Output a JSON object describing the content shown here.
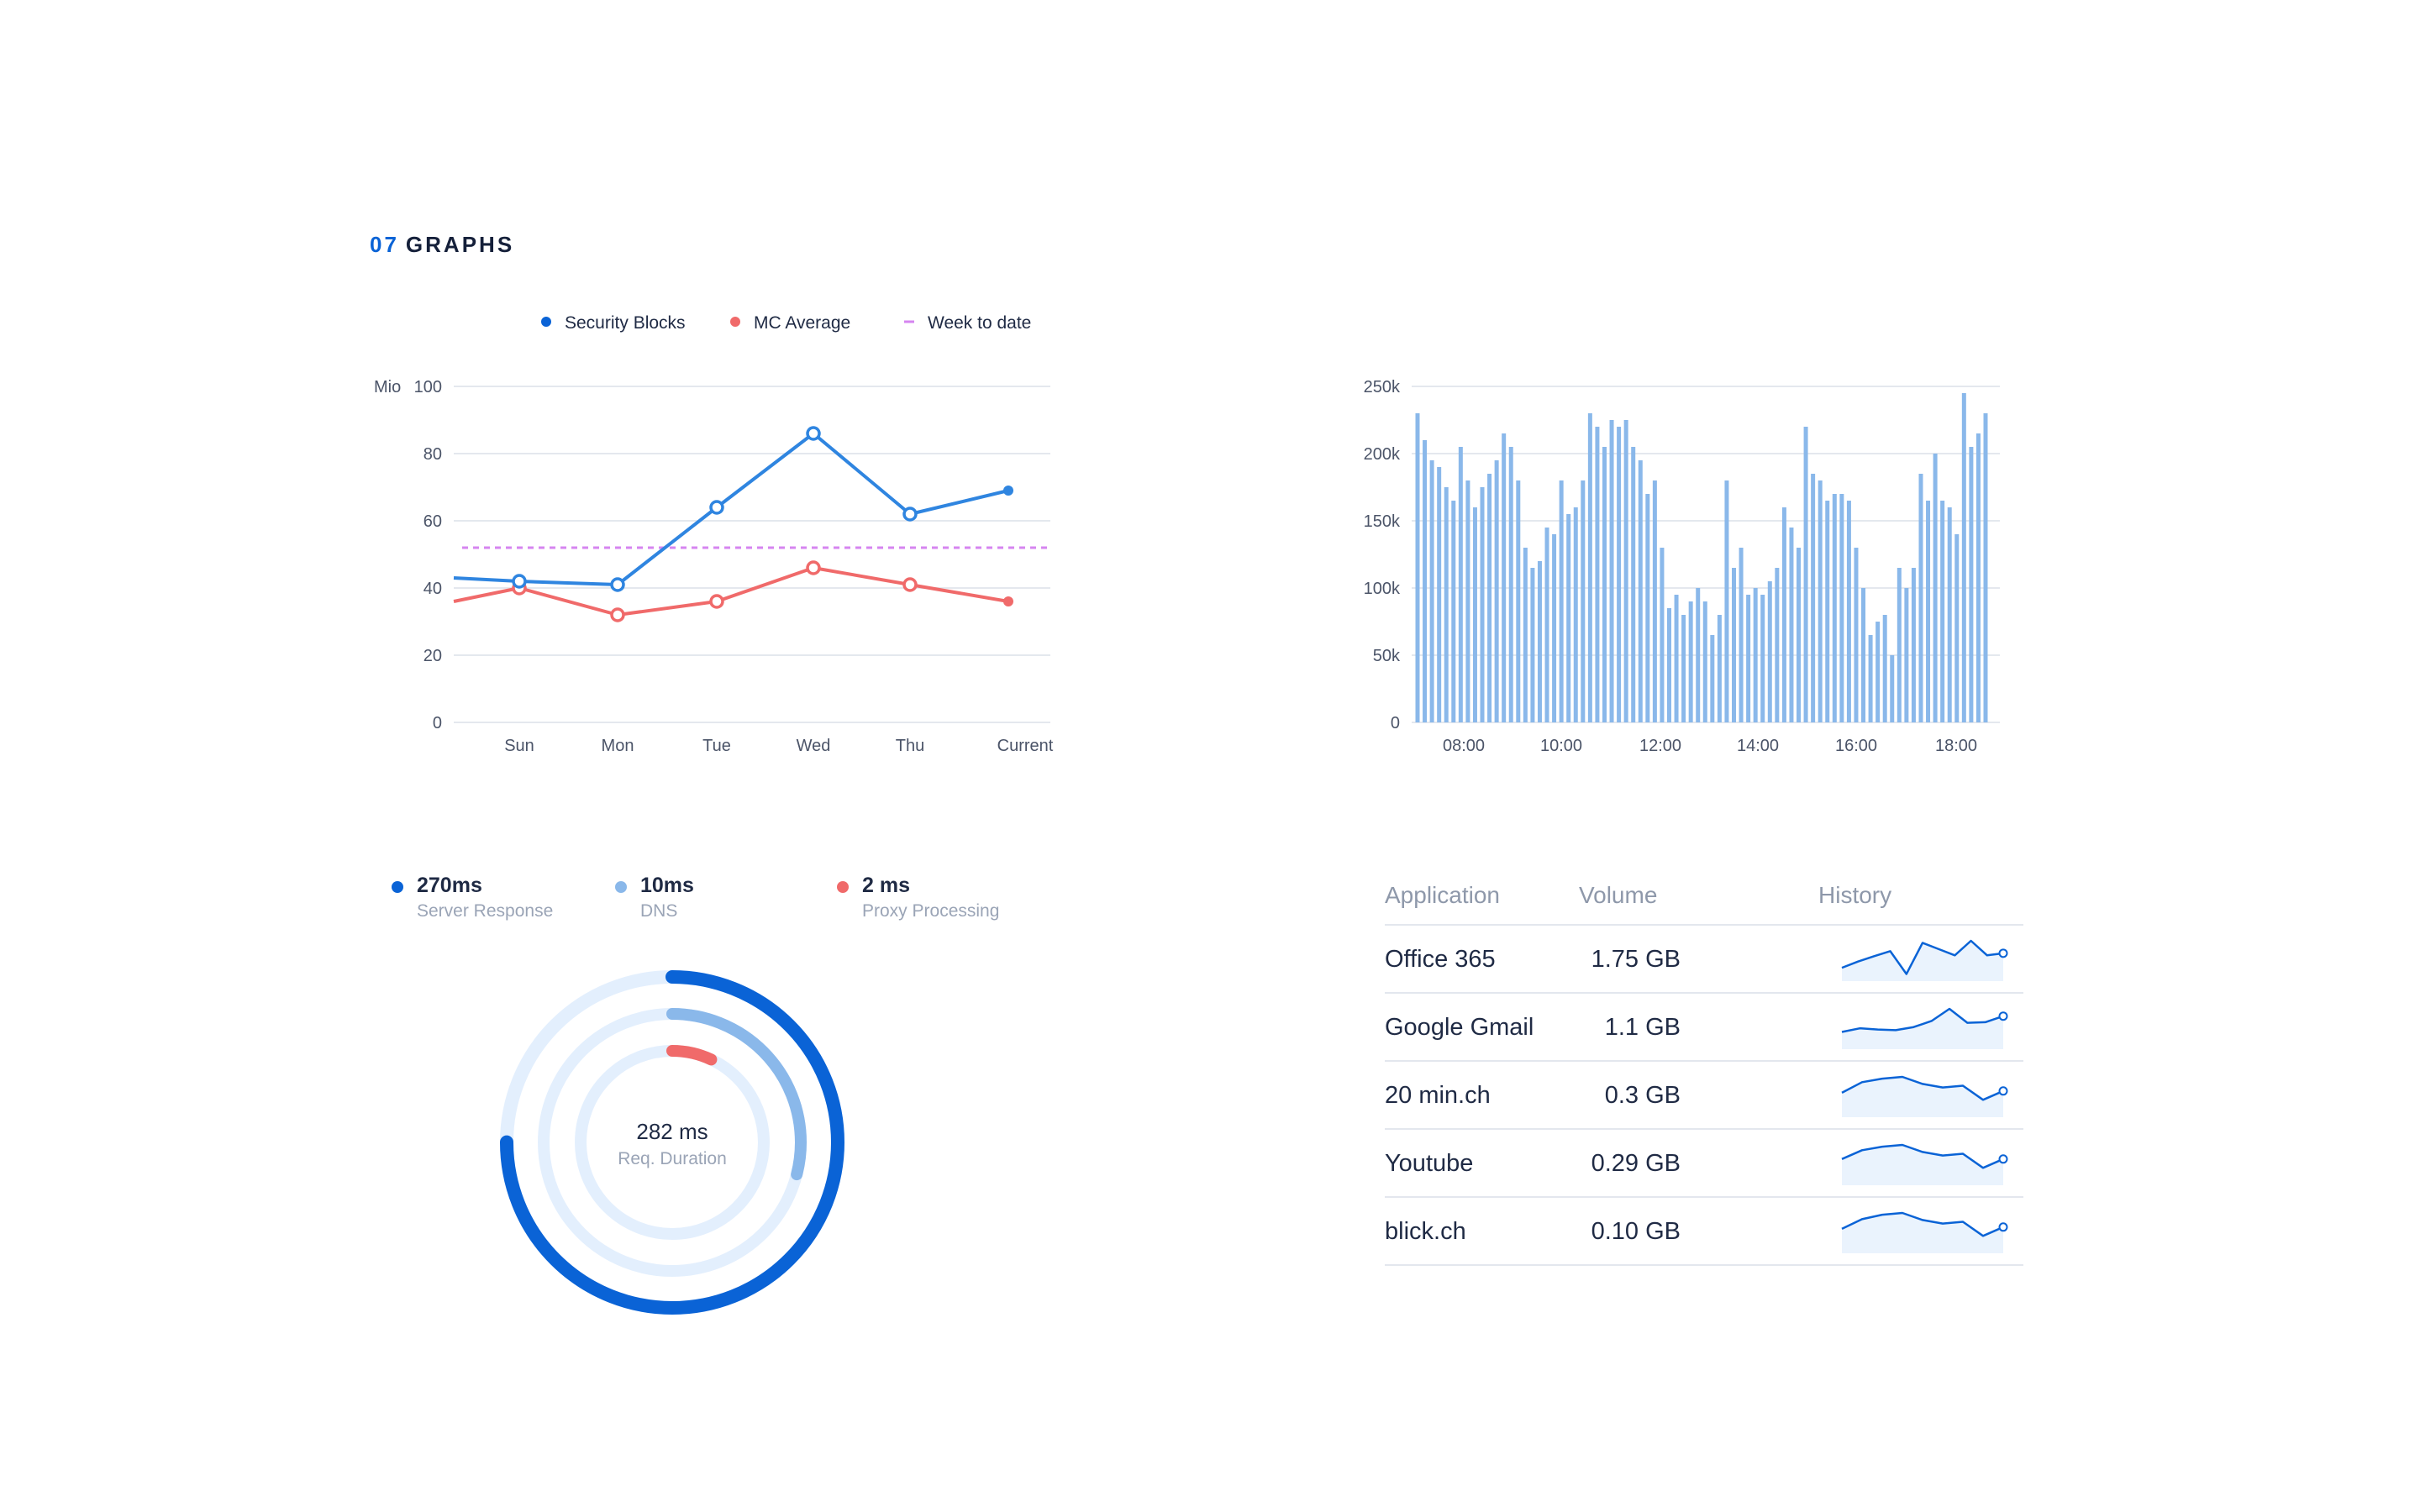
{
  "header": {
    "number": "07",
    "title": "GRAPHS"
  },
  "colors": {
    "blue": "#0a63d6",
    "line_blue": "#2f85e0",
    "red": "#f06a6a",
    "purple": "#d685f0",
    "bar": "#8ab8ea",
    "ring_track": "#e3effd"
  },
  "chart_data": [
    {
      "type": "line",
      "legend": [
        "Security Blocks",
        "MC Average",
        "Week to date"
      ],
      "legend_position": "top",
      "ylabel": "Mio",
      "yticks": [
        "100",
        "80",
        "60",
        "40",
        "20",
        "0"
      ],
      "ylim": [
        0,
        100
      ],
      "categories": [
        "Sun",
        "Mon",
        "Tue",
        "Wed",
        "Thu",
        "Current"
      ],
      "series": [
        {
          "name": "Security Blocks",
          "values": [
            42,
            41,
            64,
            86,
            62,
            69
          ],
          "start": 43
        },
        {
          "name": "MC Average",
          "values": [
            40,
            32,
            36,
            46,
            41,
            36
          ],
          "start": 36
        },
        {
          "name": "Week to date",
          "constant": 52
        }
      ],
      "grid": true
    },
    {
      "type": "bar",
      "yticks": [
        "250k",
        "200k",
        "150k",
        "100k",
        "50k",
        "0"
      ],
      "ylim": [
        0,
        250000
      ],
      "xticks": [
        "08:00",
        "10:00",
        "12:00",
        "14:00",
        "16:00",
        "18:00"
      ],
      "values": [
        230000,
        210000,
        195000,
        190000,
        175000,
        165000,
        205000,
        180000,
        160000,
        175000,
        185000,
        195000,
        215000,
        205000,
        180000,
        130000,
        115000,
        120000,
        145000,
        140000,
        180000,
        155000,
        160000,
        180000,
        230000,
        220000,
        205000,
        225000,
        220000,
        225000,
        205000,
        195000,
        170000,
        180000,
        130000,
        85000,
        95000,
        80000,
        90000,
        100000,
        90000,
        65000,
        80000,
        180000,
        115000,
        130000,
        95000,
        100000,
        95000,
        105000,
        115000,
        160000,
        145000,
        130000,
        220000,
        185000,
        180000,
        165000,
        170000,
        170000,
        165000,
        130000,
        100000,
        65000,
        75000,
        80000,
        50000,
        115000,
        100000,
        115000,
        185000,
        165000,
        200000,
        165000,
        160000,
        140000,
        245000,
        205000,
        215000,
        230000
      ],
      "grid": true
    },
    {
      "type": "pie",
      "variant": "radial-rings",
      "center_value": "282 ms",
      "center_label": "Req. Duration",
      "rings": [
        {
          "name": "Server Response",
          "value_text": "270ms",
          "fraction": 0.75
        },
        {
          "name": "DNS",
          "value_text": "10ms",
          "fraction": 0.29
        },
        {
          "name": "Proxy Processing",
          "value_text": "2 ms",
          "fraction": 0.07
        }
      ]
    },
    {
      "type": "table",
      "columns": [
        "Application",
        "Volume",
        "History"
      ],
      "rows": [
        {
          "application": "Office 365",
          "volume": "1.75 GB",
          "history": [
            20,
            35,
            48,
            60,
            5,
            80,
            65,
            50,
            85,
            50,
            55
          ]
        },
        {
          "application": "Google Gmail",
          "volume": "1.1 GB",
          "history": [
            20,
            26,
            24,
            23,
            28,
            38,
            58,
            35,
            36,
            46
          ]
        },
        {
          "application": "20 min.ch",
          "volume": "0.3 GB",
          "history": [
            22,
            34,
            38,
            40,
            32,
            28,
            30,
            14,
            24
          ]
        },
        {
          "application": "Youtube",
          "volume": "0.29 GB",
          "history": [
            24,
            34,
            38,
            40,
            32,
            28,
            30,
            14,
            24
          ]
        },
        {
          "application": "blick.ch",
          "volume": "0.10 GB",
          "history": [
            22,
            33,
            38,
            40,
            32,
            28,
            30,
            14,
            24
          ]
        }
      ]
    }
  ]
}
